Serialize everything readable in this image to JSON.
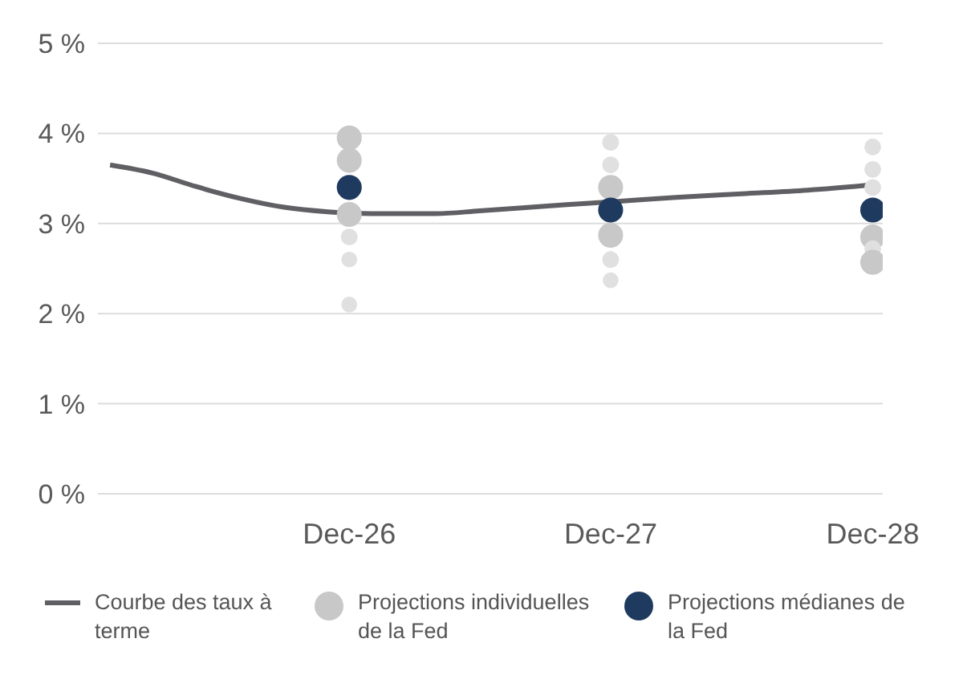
{
  "chart_data": {
    "type": "line",
    "xlim": [
      "2025-12-15",
      "2028-12-15"
    ],
    "xticks": [
      {
        "value": "2026-12",
        "label": "Dec-26"
      },
      {
        "value": "2027-12",
        "label": "Dec-27"
      },
      {
        "value": "2028-12",
        "label": "Dec-28"
      }
    ],
    "ylim": [
      0,
      5
    ],
    "yticks": [
      {
        "value": 0,
        "label": "0 %"
      },
      {
        "value": 1,
        "label": "1 %"
      },
      {
        "value": 2,
        "label": "2 %"
      },
      {
        "value": 3,
        "label": "3 %"
      },
      {
        "value": 4,
        "label": "4 %"
      },
      {
        "value": 5,
        "label": "5 %"
      }
    ],
    "grid": "y",
    "legend": "bottom",
    "series": [
      {
        "name": "Courbe des taux à terme",
        "color": "#5f5f64",
        "marker": "none",
        "line_style": "solid",
        "x": [
          "2026-01",
          "2026-03",
          "2026-05",
          "2026-07",
          "2026-09",
          "2026-11",
          "2027-01",
          "2027-04",
          "2027-06",
          "2027-10",
          "2027-12",
          "2028-03",
          "2028-06",
          "2028-09",
          "2028-12"
        ],
        "values": [
          3.65,
          3.56,
          3.41,
          3.28,
          3.18,
          3.13,
          3.11,
          3.11,
          3.14,
          3.21,
          3.24,
          3.29,
          3.33,
          3.37,
          3.43
        ]
      },
      {
        "name": "Projections individuelles de la Fed",
        "type": "bubble",
        "color": "#c8c8c8",
        "x": [
          "2026-12",
          "2026-12",
          "2026-12",
          "2026-12",
          "2026-12",
          "2026-12",
          "2027-12",
          "2027-12",
          "2027-12",
          "2027-12",
          "2027-12",
          "2027-12",
          "2028-12",
          "2028-12",
          "2028-12",
          "2028-12",
          "2028-12",
          "2028-12"
        ],
        "values": [
          3.95,
          3.7,
          3.1,
          2.85,
          2.6,
          2.1,
          3.9,
          3.65,
          3.4,
          2.87,
          2.6,
          2.37,
          3.85,
          3.6,
          3.4,
          2.85,
          2.72,
          2.57
        ],
        "sizes": [
          1,
          1,
          1,
          0.45,
          0.4,
          0.4,
          0.45,
          0.45,
          1,
          1,
          0.45,
          0.4,
          0.45,
          0.45,
          0.45,
          1,
          0.45,
          1
        ],
        "colors": [
          "#c8c8c8",
          "#c8c8c8",
          "#c8c8c8",
          "#e0e0e0",
          "#e0e0e0",
          "#e0e0e0",
          "#e0e0e0",
          "#e0e0e0",
          "#c8c8c8",
          "#c8c8c8",
          "#e0e0e0",
          "#e0e0e0",
          "#e0e0e0",
          "#e0e0e0",
          "#e0e0e0",
          "#c8c8c8",
          "#e0e0e0",
          "#c8c8c8"
        ]
      },
      {
        "name": "Projections médianes de la Fed",
        "type": "scatter",
        "color": "#1f3a5f",
        "marker": "circle",
        "x": [
          "2026-12",
          "2027-12",
          "2028-12"
        ],
        "values": [
          3.4,
          3.15,
          3.15
        ]
      }
    ]
  }
}
